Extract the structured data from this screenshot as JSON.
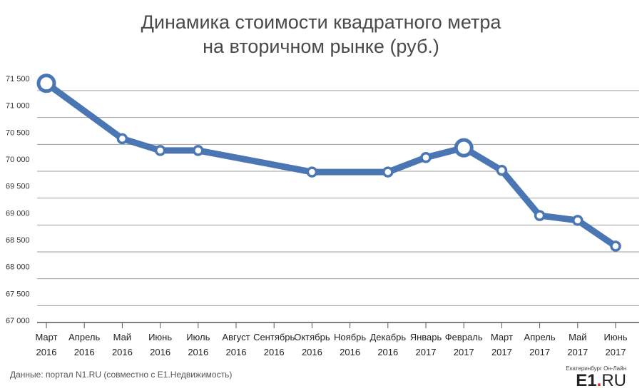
{
  "title_lines": [
    "Динамика стоимости квадратного метра",
    "на вторичном рынке (руб.)"
  ],
  "source": "Данные: портал N1.RU (совместно с E1.Недвижимость)",
  "logo": {
    "small": "Екатеринбург Он-Лайн",
    "brand": "E1",
    "dot": ".",
    "suffix": "RU"
  },
  "colors": {
    "line": "#4a77b4",
    "grid": "#9e9e9e",
    "marker_fill": "#ffffff"
  },
  "chart_data": {
    "type": "line",
    "title": "Динамика стоимости квадратного метра на вторичном рынке (руб.)",
    "categories": [
      [
        "Март",
        "2016"
      ],
      [
        "Апрель",
        "2016"
      ],
      [
        "Май",
        "2016"
      ],
      [
        "Июнь",
        "2016"
      ],
      [
        "Июль",
        "2016"
      ],
      [
        "Август",
        "2016"
      ],
      [
        "Сентябрь",
        "2016"
      ],
      [
        "Октябрь",
        "2016"
      ],
      [
        "Ноябрь",
        "2016"
      ],
      [
        "Декабрь",
        "2016"
      ],
      [
        "Январь",
        "2017"
      ],
      [
        "Февраль",
        "2017"
      ],
      [
        "Март",
        "2017"
      ],
      [
        "Апрель",
        "2017"
      ],
      [
        "Май",
        "2017"
      ],
      [
        "Июнь",
        "2017"
      ]
    ],
    "values": [
      71450,
      null,
      70420,
      70200,
      70200,
      null,
      null,
      69800,
      null,
      69800,
      70070,
      70250,
      69830,
      68990,
      68900,
      68420
    ],
    "highlight": [
      0,
      11
    ],
    "ylim": [
      67000,
      71500
    ],
    "yticks": [
      67000,
      67500,
      68000,
      68500,
      69000,
      69500,
      70000,
      70500,
      71000,
      71500
    ],
    "ytick_labels": [
      "67 000",
      "67 500",
      "68 000",
      "68 500",
      "69 000",
      "69 500",
      "70 000",
      "70 500",
      "71 000",
      "71 500"
    ],
    "grid": true,
    "xlabel": "",
    "ylabel": ""
  }
}
